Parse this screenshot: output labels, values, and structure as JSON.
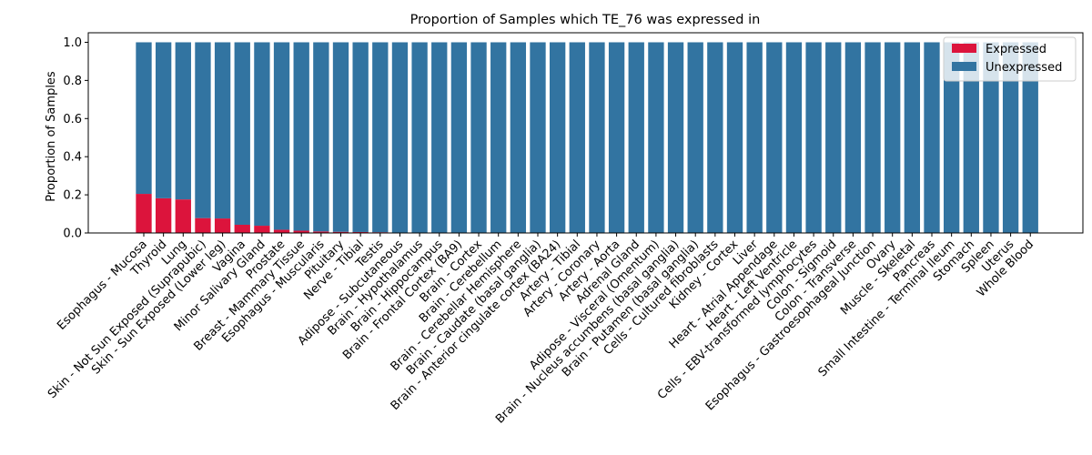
{
  "chart_data": {
    "type": "bar",
    "stacked": true,
    "title": "Proportion of Samples which TE_76 was expressed in",
    "xlabel": "",
    "ylabel": "Proportion of Samples",
    "ylim": [
      0,
      1.05
    ],
    "yticks": [
      0.0,
      0.2,
      0.4,
      0.6,
      0.8,
      1.0
    ],
    "ytick_labels": [
      "0.0",
      "0.2",
      "0.4",
      "0.6",
      "0.8",
      "1.0"
    ],
    "grid": false,
    "legend_position": "top-right",
    "categories": [
      "Esophagus - Mucosa",
      "Thyroid",
      "Lung",
      "Skin - Not Sun Exposed (Suprapubic)",
      "Skin - Sun Exposed (Lower leg)",
      "Vagina",
      "Minor Salivary Gland",
      "Prostate",
      "Breast - Mammary Tissue",
      "Esophagus - Muscularis",
      "Pituitary",
      "Nerve - Tibial",
      "Testis",
      "Adipose - Subcutaneous",
      "Brain - Hypothalamus",
      "Brain - Hippocampus",
      "Brain - Frontal Cortex (BA9)",
      "Brain - Cortex",
      "Brain - Cerebellum",
      "Brain - Cerebellar Hemisphere",
      "Brain - Caudate (basal ganglia)",
      "Brain - Anterior cingulate cortex (BA24)",
      "Artery - Tibial",
      "Artery - Coronary",
      "Artery - Aorta",
      "Adrenal Gland",
      "Adipose - Visceral (Omentum)",
      "Brain - Nucleus accumbens (basal ganglia)",
      "Brain - Putamen (basal ganglia)",
      "Cells - Cultured fibroblasts",
      "Kidney - Cortex",
      "Liver",
      "Heart - Atrial Appendage",
      "Heart - Left Ventricle",
      "Cells - EBV-transformed lymphocytes",
      "Colon - Sigmoid",
      "Colon - Transverse",
      "Esophagus - Gastroesophageal Junction",
      "Ovary",
      "Muscle - Skeletal",
      "Pancreas",
      "Small Intestine - Terminal Ileum",
      "Stomach",
      "Spleen",
      "Uterus",
      "Whole Blood"
    ],
    "series": [
      {
        "name": "Expressed",
        "color": "#dc143c",
        "values": [
          0.205,
          0.182,
          0.176,
          0.078,
          0.076,
          0.043,
          0.038,
          0.017,
          0.012,
          0.008,
          0.006,
          0.005,
          0.004,
          0,
          0,
          0,
          0,
          0,
          0,
          0,
          0,
          0,
          0,
          0,
          0,
          0,
          0,
          0,
          0,
          0,
          0,
          0,
          0,
          0,
          0,
          0,
          0,
          0,
          0,
          0,
          0,
          0,
          0,
          0,
          0,
          0
        ]
      },
      {
        "name": "Unexpressed",
        "color": "#3274a1",
        "values": [
          0.795,
          0.818,
          0.824,
          0.922,
          0.924,
          0.957,
          0.962,
          0.983,
          0.988,
          0.992,
          0.994,
          0.995,
          0.996,
          1,
          1,
          1,
          1,
          1,
          1,
          1,
          1,
          1,
          1,
          1,
          1,
          1,
          1,
          1,
          1,
          1,
          1,
          1,
          1,
          1,
          1,
          1,
          1,
          1,
          1,
          1,
          1,
          1,
          1,
          1,
          1,
          1
        ]
      }
    ]
  }
}
